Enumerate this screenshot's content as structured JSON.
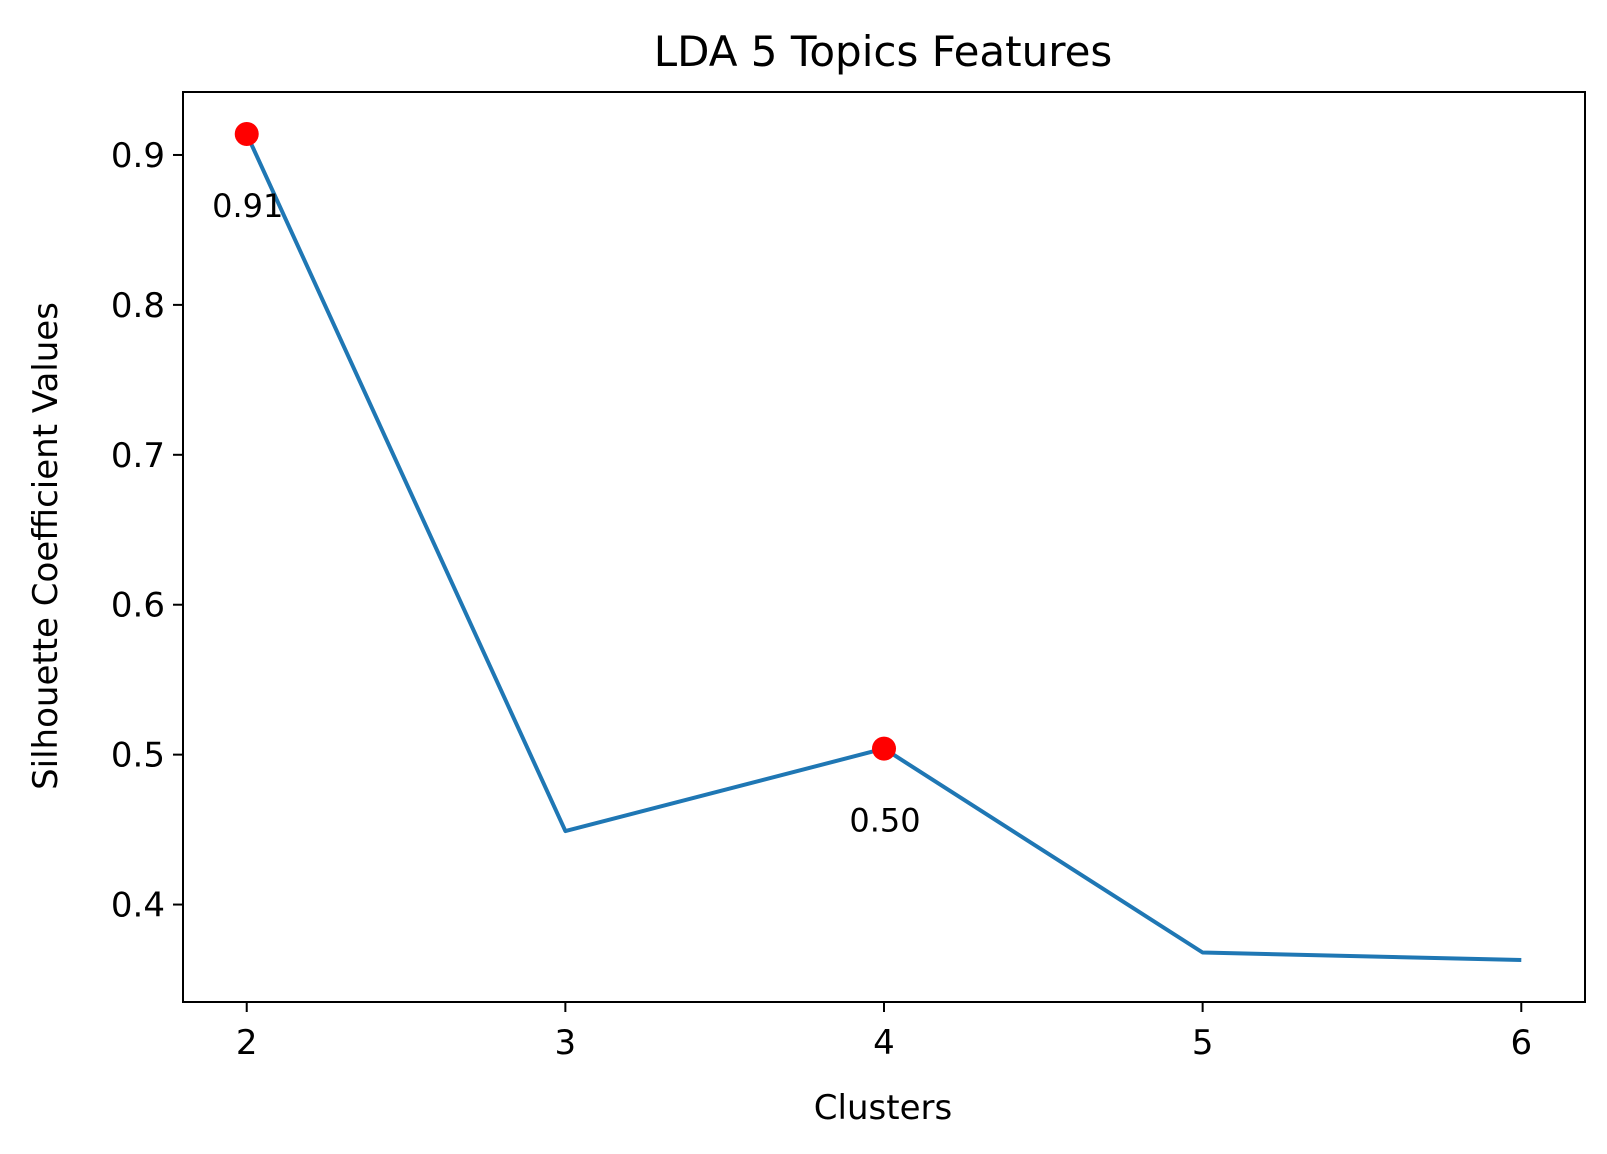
{
  "chart_data": {
    "type": "line",
    "title": "LDA 5 Topics Features",
    "xlabel": "Clusters",
    "ylabel": "Silhouette Coefficient Values",
    "x": [
      2,
      3,
      4,
      5,
      6
    ],
    "xticks": [
      "2",
      "3",
      "4",
      "5",
      "6"
    ],
    "xlim": [
      1.8,
      6.2
    ],
    "yticks": [
      "0.4",
      "0.5",
      "0.6",
      "0.7",
      "0.8",
      "0.9"
    ],
    "ylim": [
      0.335,
      0.942
    ],
    "series": [
      {
        "values": [
          0.914,
          0.449,
          0.504,
          0.368,
          0.363
        ],
        "color": "#1f77b4"
      }
    ],
    "highlights": [
      {
        "x": 2,
        "y": 0.914,
        "label": "0.91",
        "color": "#ff0000"
      },
      {
        "x": 4,
        "y": 0.504,
        "label": "0.50",
        "color": "#ff0000"
      }
    ],
    "grid": false,
    "legend": "none"
  }
}
